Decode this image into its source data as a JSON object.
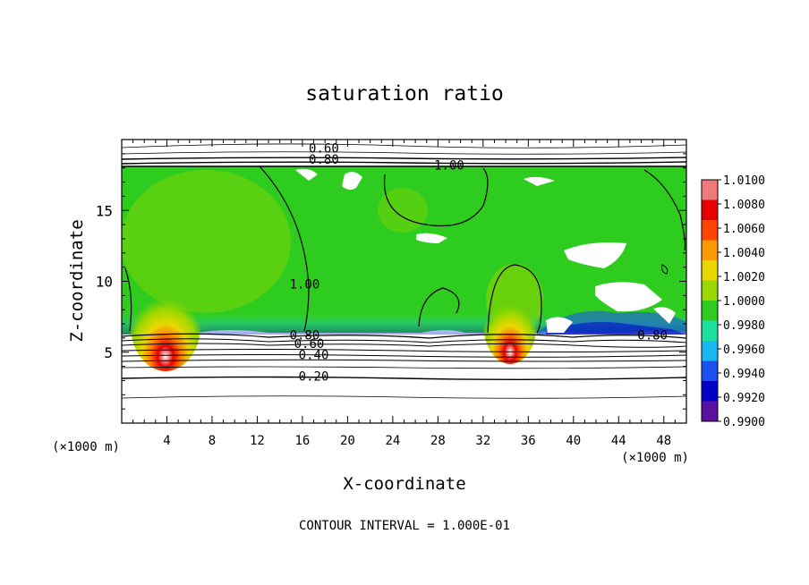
{
  "chart_data": {
    "type": "heatmap",
    "title": "saturation ratio",
    "xlabel": "X-coordinate",
    "ylabel": "Z-coordinate",
    "x_unit": "(×1000 m)",
    "y_unit": "(×1000 m)",
    "xlim": [
      0,
      50
    ],
    "ylim": [
      0,
      20
    ],
    "x_ticks": [
      "4",
      "8",
      "12",
      "16",
      "20",
      "24",
      "28",
      "32",
      "36",
      "40",
      "44",
      "48"
    ],
    "y_ticks": [
      "5",
      "10",
      "15"
    ],
    "footer": "CONTOUR INTERVAL = 1.000E-01",
    "colorbar": {
      "range": [
        0.99,
        1.01
      ],
      "labels": [
        "1.0100",
        "1.0080",
        "1.0060",
        "1.0040",
        "1.0020",
        "1.0000",
        "0.9980",
        "0.9960",
        "0.9940",
        "0.9920",
        "0.9900"
      ],
      "colors": [
        "#f07a7a",
        "#e60000",
        "#ff4500",
        "#ff9900",
        "#e8d800",
        "#9ad800",
        "#2ecc1e",
        "#1ae0a0",
        "#1ab8f0",
        "#1a50f0",
        "#0000c8",
        "#5a10a0"
      ]
    },
    "contour_labels": [
      {
        "text": "0.60",
        "x": 17.9,
        "z": 19.1
      },
      {
        "text": "0.80",
        "x": 17.9,
        "z": 18.3
      },
      {
        "text": "1.00",
        "x": 29.0,
        "z": 17.9
      },
      {
        "text": "1.00",
        "x": 16.2,
        "z": 9.5
      },
      {
        "text": "0.80",
        "x": 16.2,
        "z": 5.9
      },
      {
        "text": "0.60",
        "x": 16.6,
        "z": 5.3
      },
      {
        "text": "0.40",
        "x": 17.0,
        "z": 4.5
      },
      {
        "text": "0.20",
        "x": 17.0,
        "z": 3.0
      },
      {
        "text": "0.80",
        "x": 47.0,
        "z": 5.9
      }
    ]
  }
}
